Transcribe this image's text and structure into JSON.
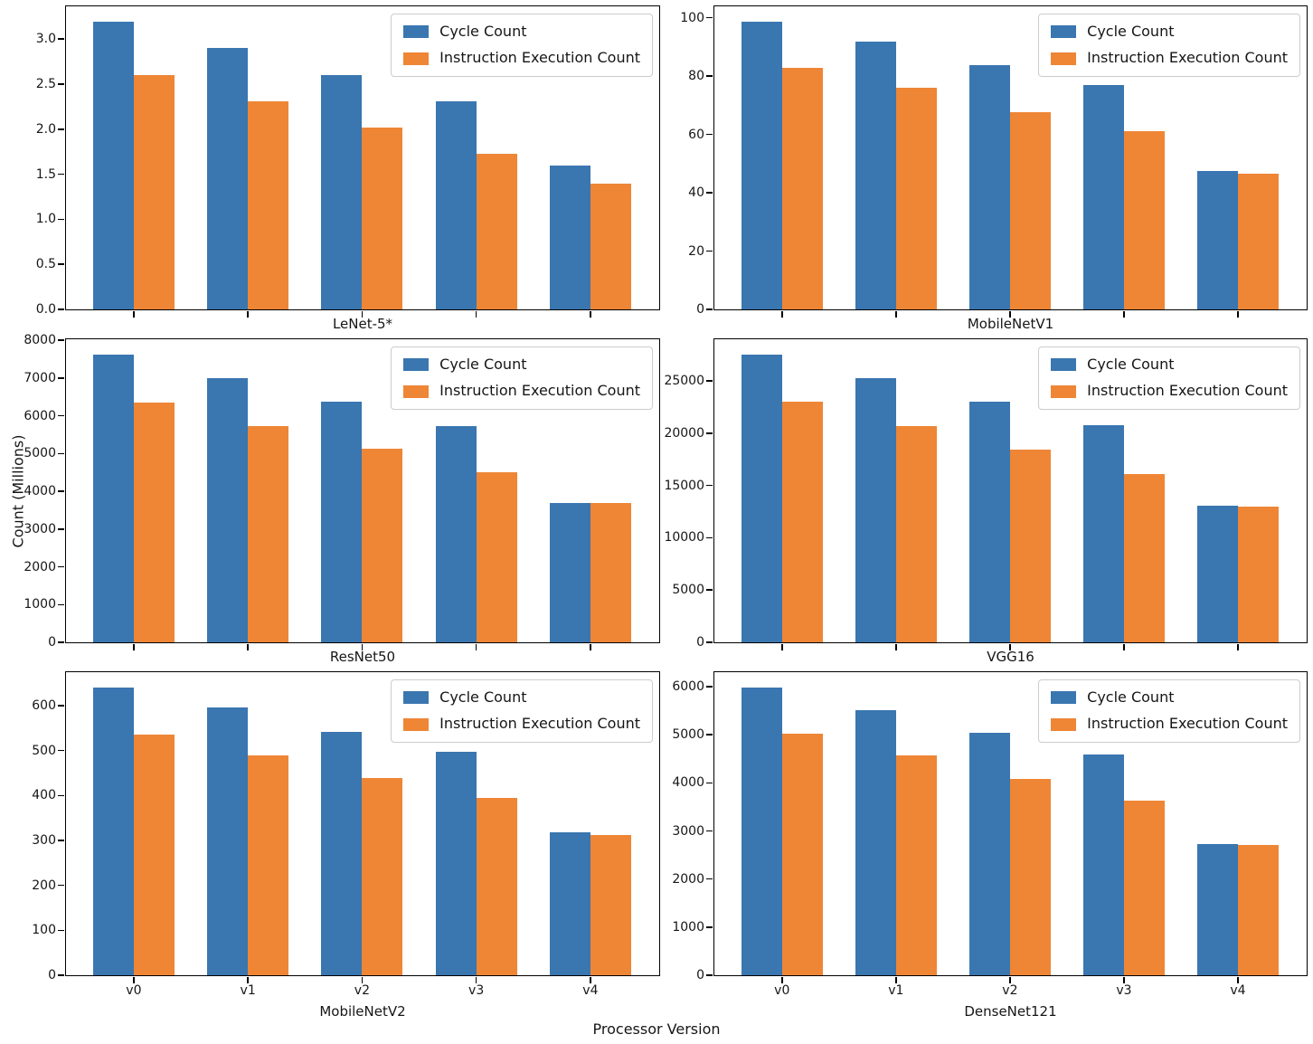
{
  "shared": {
    "xlabel": "Processor Version",
    "ylabel": "Count (Millions)"
  },
  "colors": {
    "cycle": "#3A76B0",
    "instruction": "#EE8636",
    "spine": "#000000",
    "text": "#161616"
  },
  "legend": {
    "items": [
      {
        "label": "Cycle Count",
        "color_key": "cycle"
      },
      {
        "label": "Instruction Execution Count",
        "color_key": "instruction"
      }
    ]
  },
  "chart_data": [
    {
      "type": "bar",
      "xlabel": "LeNet-5*",
      "categories": [
        "v0",
        "v1",
        "v2",
        "v3",
        "v4"
      ],
      "series": [
        {
          "name": "Cycle Count",
          "values": [
            3.19,
            2.9,
            2.6,
            2.31,
            1.6
          ]
        },
        {
          "name": "Instruction Execution Count",
          "values": [
            2.6,
            2.31,
            2.02,
            1.73,
            1.4
          ]
        }
      ],
      "ylim": [
        0,
        3.35
      ],
      "ytick_values": [
        0.0,
        0.5,
        1.0,
        1.5,
        2.0,
        2.5,
        3.0
      ],
      "ytick_labels": [
        "0.0",
        "0.5",
        "1.0",
        "1.5",
        "2.0",
        "2.5",
        "3.0"
      ],
      "show_xtick_labels": false,
      "legend": true,
      "grid": false
    },
    {
      "type": "bar",
      "xlabel": "MobileNetV1",
      "categories": [
        "v0",
        "v1",
        "v2",
        "v3",
        "v4"
      ],
      "series": [
        {
          "name": "Cycle Count",
          "values": [
            98.6,
            91.8,
            83.6,
            76.9,
            47.4
          ]
        },
        {
          "name": "Instruction Execution Count",
          "values": [
            82.7,
            76.0,
            67.6,
            61.1,
            46.4
          ]
        }
      ],
      "ylim": [
        0,
        103.5
      ],
      "ytick_values": [
        0,
        20,
        40,
        60,
        80,
        100
      ],
      "ytick_labels": [
        "0",
        "20",
        "40",
        "60",
        "80",
        "100"
      ],
      "show_xtick_labels": false,
      "legend": true,
      "grid": false
    },
    {
      "type": "bar",
      "xlabel": "ResNet50",
      "categories": [
        "v0",
        "v1",
        "v2",
        "v3",
        "v4"
      ],
      "series": [
        {
          "name": "Cycle Count",
          "values": [
            7620,
            7000,
            6380,
            5740,
            3680
          ]
        },
        {
          "name": "Instruction Execution Count",
          "values": [
            6360,
            5740,
            5120,
            4500,
            3680
          ]
        }
      ],
      "ylim": [
        0,
        8001
      ],
      "ytick_values": [
        0,
        1000,
        2000,
        3000,
        4000,
        5000,
        6000,
        7000,
        8000
      ],
      "ytick_labels": [
        "0",
        "1000",
        "2000",
        "3000",
        "4000",
        "5000",
        "6000",
        "7000",
        "8000"
      ],
      "show_xtick_labels": false,
      "legend": true,
      "grid": false
    },
    {
      "type": "bar",
      "xlabel": "VGG16",
      "categories": [
        "v0",
        "v1",
        "v2",
        "v3",
        "v4"
      ],
      "series": [
        {
          "name": "Cycle Count",
          "values": [
            27500,
            25300,
            23000,
            20750,
            13100
          ]
        },
        {
          "name": "Instruction Execution Count",
          "values": [
            23000,
            20650,
            18450,
            16100,
            13000
          ]
        }
      ],
      "ylim": [
        0,
        28875
      ],
      "ytick_values": [
        0,
        5000,
        10000,
        15000,
        20000,
        25000
      ],
      "ytick_labels": [
        "0",
        "5000",
        "10000",
        "15000",
        "20000",
        "25000"
      ],
      "show_xtick_labels": false,
      "legend": true,
      "grid": false
    },
    {
      "type": "bar",
      "xlabel": "MobileNetV2",
      "categories": [
        "v0",
        "v1",
        "v2",
        "v3",
        "v4"
      ],
      "series": [
        {
          "name": "Cycle Count",
          "values": [
            640,
            595,
            542,
            498,
            318
          ]
        },
        {
          "name": "Instruction Execution Count",
          "values": [
            536,
            490,
            438,
            394,
            312
          ]
        }
      ],
      "ylim": [
        0,
        672
      ],
      "ytick_values": [
        0,
        100,
        200,
        300,
        400,
        500,
        600
      ],
      "ytick_labels": [
        "0",
        "100",
        "200",
        "300",
        "400",
        "500",
        "600"
      ],
      "show_xtick_labels": true,
      "legend": true,
      "grid": false
    },
    {
      "type": "bar",
      "xlabel": "DenseNet121",
      "categories": [
        "v0",
        "v1",
        "v2",
        "v3",
        "v4"
      ],
      "series": [
        {
          "name": "Cycle Count",
          "values": [
            5980,
            5510,
            5050,
            4590,
            2730
          ]
        },
        {
          "name": "Instruction Execution Count",
          "values": [
            5030,
            4570,
            4080,
            3630,
            2710
          ]
        }
      ],
      "ylim": [
        0,
        6279
      ],
      "ytick_values": [
        0,
        1000,
        2000,
        3000,
        4000,
        5000,
        6000
      ],
      "ytick_labels": [
        "0",
        "1000",
        "2000",
        "3000",
        "4000",
        "5000",
        "6000"
      ],
      "show_xtick_labels": true,
      "legend": true,
      "grid": false
    }
  ]
}
